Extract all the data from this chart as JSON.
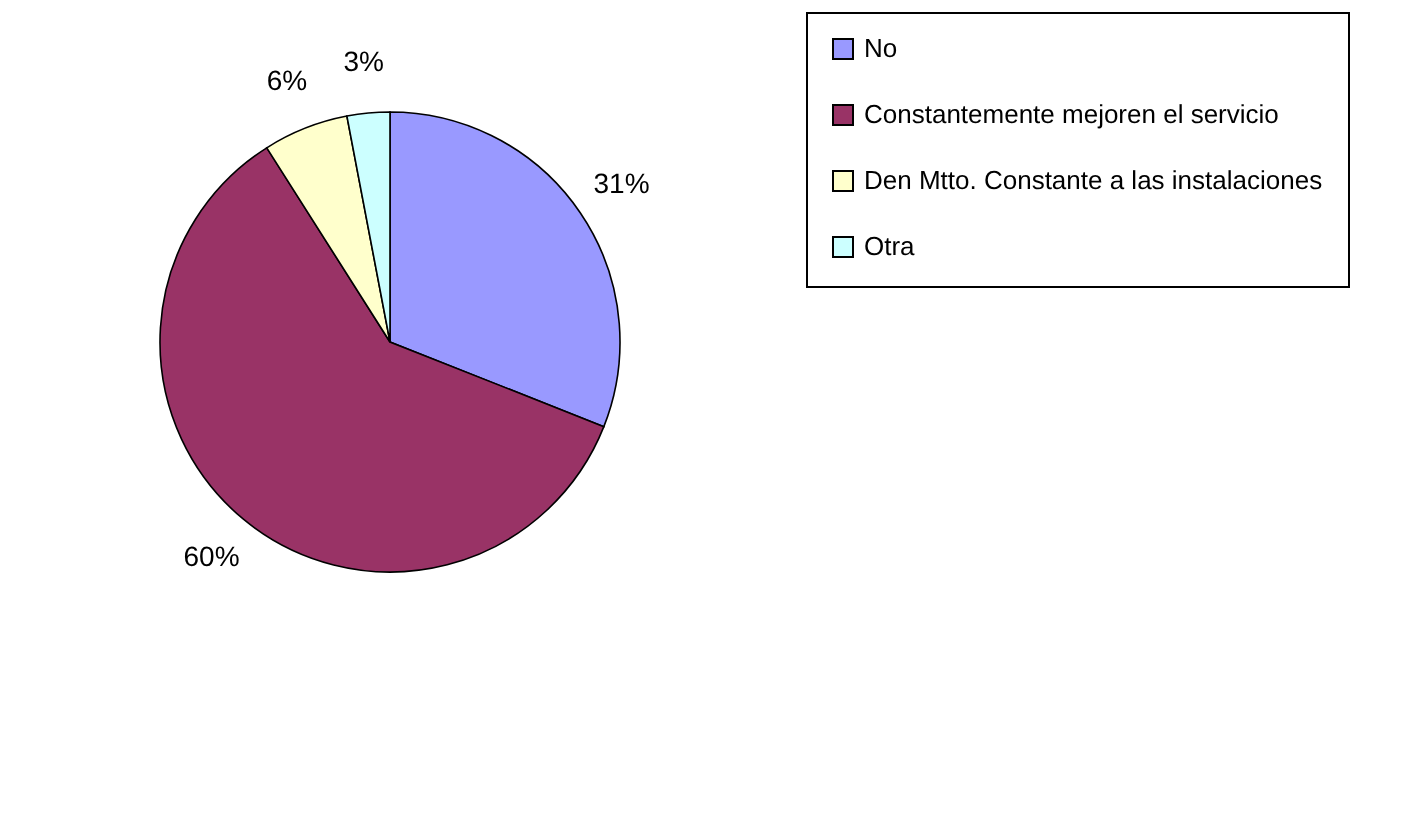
{
  "chart_data": {
    "type": "pie",
    "categories": [
      "No",
      "Constantemente mejoren el servicio",
      "Den Mtto. Constante a las instalaciones",
      "Otra"
    ],
    "values": [
      31,
      60,
      6,
      3
    ],
    "colors": [
      "#9999ff",
      "#993366",
      "#ffffcc",
      "#ccffff"
    ],
    "value_labels": [
      "31%",
      "60%",
      "6%",
      "3%"
    ],
    "legend": "right"
  }
}
